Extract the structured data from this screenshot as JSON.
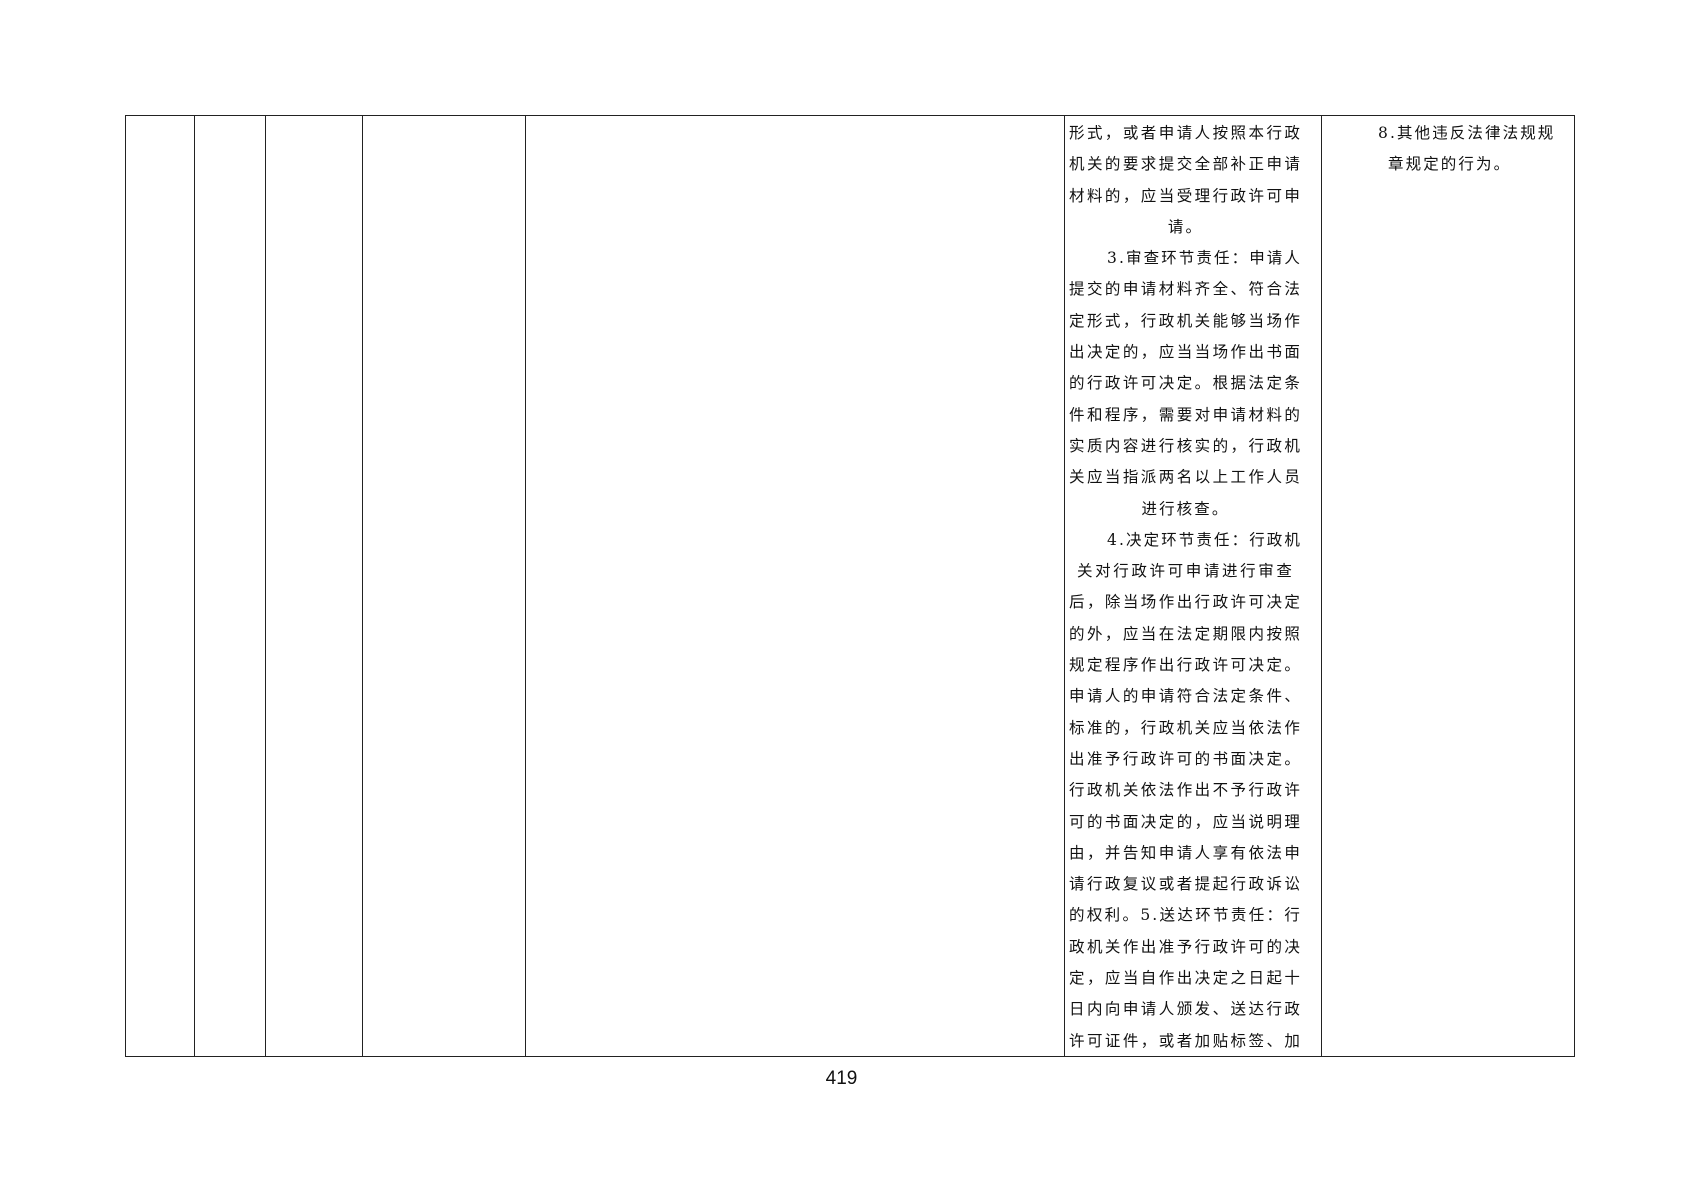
{
  "table": {
    "responsibility_lines": [
      "形式，或者申请人按照本行政",
      "机关的要求提交全部补正申请",
      "材料的，应当受理行政许可申",
      "请。",
      "3.审查环节责任：申请人",
      "提交的申请材料齐全、符合法",
      "定形式，行政机关能够当场作",
      "出决定的，应当当场作出书面",
      "的行政许可决定。根据法定条",
      "件和程序，需要对申请材料的",
      "实质内容进行核实的，行政机",
      "关应当指派两名以上工作人员",
      "进行核查。",
      "4.决定环节责任：行政机",
      "关对行政许可申请进行审查",
      "后，除当场作出行政许可决定",
      "的外，应当在法定期限内按照",
      "规定程序作出行政许可决定。",
      "申请人的申请符合法定条件、",
      "标准的，行政机关应当依法作",
      "出准予行政许可的书面决定。",
      "行政机关依法作出不予行政许",
      "可的书面决定的，应当说明理",
      "由，并告知申请人享有依法申",
      "请行政复议或者提起行政诉讼",
      "的权利。5.送达环节责任：行",
      "政机关作出准予行政许可的决",
      "定，应当自作出决定之日起十",
      "日内向申请人颁发、送达行政",
      "许可证件，或者加贴标签、加"
    ],
    "accountability_lines": [
      "8.其他违反法律法规规",
      "章规定的行为。"
    ]
  },
  "footer": {
    "page_number": "419"
  }
}
